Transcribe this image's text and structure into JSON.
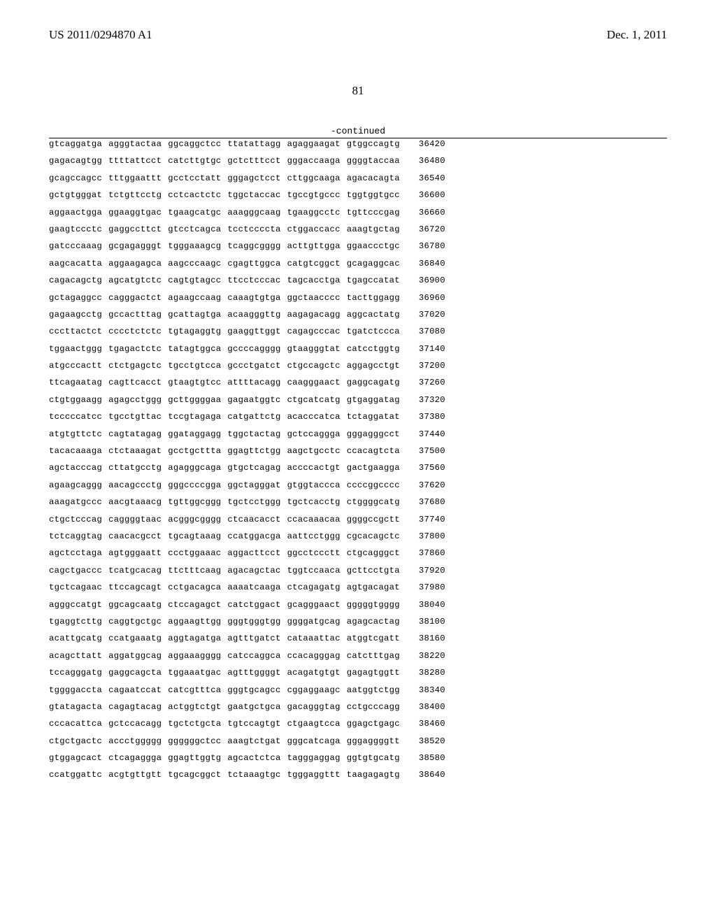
{
  "header": {
    "left": "US 2011/0294870 A1",
    "right": "Dec. 1, 2011"
  },
  "page_number": "81",
  "continued_label": "-continued",
  "sequence": {
    "rows": [
      {
        "groups": [
          "gtcaggatga",
          "agggtactaa",
          "ggcaggctcc",
          "ttatattagg",
          "agaggaagat",
          "gtggccagtg"
        ],
        "pos": "36420"
      },
      {
        "groups": [
          "gagacagtgg",
          "ttttattcct",
          "catcttgtgc",
          "gctctttcct",
          "gggaccaaga",
          "ggggtaccaa"
        ],
        "pos": "36480"
      },
      {
        "groups": [
          "gcagccagcc",
          "tttggaattt",
          "gcctcctatt",
          "gggagctcct",
          "cttggcaaga",
          "agacacagta"
        ],
        "pos": "36540"
      },
      {
        "groups": [
          "gctgtgggat",
          "tctgttcctg",
          "cctcactctc",
          "tggctaccac",
          "tgccgtgccc",
          "tggtggtgcc"
        ],
        "pos": "36600"
      },
      {
        "groups": [
          "aggaactgga",
          "ggaaggtgac",
          "tgaagcatgc",
          "aaagggcaag",
          "tgaaggcctc",
          "tgttcccgag"
        ],
        "pos": "36660"
      },
      {
        "groups": [
          "gaagtccctc",
          "gaggccttct",
          "gtcctcagca",
          "tcctccccta",
          "ctggaccacc",
          "aaagtgctag"
        ],
        "pos": "36720"
      },
      {
        "groups": [
          "gatcccaaag",
          "gcgagagggt",
          "tgggaaagcg",
          "tcaggcgggg",
          "acttgttgga",
          "ggaaccctgc"
        ],
        "pos": "36780"
      },
      {
        "groups": [
          "aagcacatta",
          "aggaagagca",
          "aagcccaagc",
          "cgagttggca",
          "catgtcggct",
          "gcagaggcac"
        ],
        "pos": "36840"
      },
      {
        "groups": [
          "cagacagctg",
          "agcatgtctc",
          "cagtgtagcc",
          "ttcctcccac",
          "tagcacctga",
          "tgagccatat"
        ],
        "pos": "36900"
      },
      {
        "groups": [
          "gctagaggcc",
          "cagggactct",
          "agaagccaag",
          "caaagtgtga",
          "ggctaacccc",
          "tacttggagg"
        ],
        "pos": "36960"
      },
      {
        "groups": [
          "gagaagcctg",
          "gccactttag",
          "gcattagtga",
          "acaagggttg",
          "aagagacagg",
          "aggcactatg"
        ],
        "pos": "37020"
      },
      {
        "groups": [
          "cccttactct",
          "cccctctctc",
          "tgtagaggtg",
          "gaaggttggt",
          "cagagcccac",
          "tgatctccca"
        ],
        "pos": "37080"
      },
      {
        "groups": [
          "tggaactggg",
          "tgagactctc",
          "tatagtggca",
          "gccccagggg",
          "gtaagggtat",
          "catcctggtg"
        ],
        "pos": "37140"
      },
      {
        "groups": [
          "atgcccactt",
          "ctctgagctc",
          "tgcctgtcca",
          "gccctgatct",
          "ctgccagctc",
          "aggagcctgt"
        ],
        "pos": "37200"
      },
      {
        "groups": [
          "ttcagaatag",
          "cagttcacct",
          "gtaagtgtcc",
          "attttacagg",
          "caagggaact",
          "gaggcagatg"
        ],
        "pos": "37260"
      },
      {
        "groups": [
          "ctgtggaagg",
          "agagcctggg",
          "gcttggggaa",
          "gagaatggtc",
          "ctgcatcatg",
          "gtgaggatag"
        ],
        "pos": "37320"
      },
      {
        "groups": [
          "tcccccatcc",
          "tgcctgttac",
          "tccgtagaga",
          "catgattctg",
          "acacccatca",
          "tctaggatat"
        ],
        "pos": "37380"
      },
      {
        "groups": [
          "atgtgttctc",
          "cagtatagag",
          "ggataggagg",
          "tggctactag",
          "gctccaggga",
          "gggagggcct"
        ],
        "pos": "37440"
      },
      {
        "groups": [
          "tacacaaaga",
          "ctctaaagat",
          "gcctgcttta",
          "ggagttctgg",
          "aagctgcctc",
          "ccacagtcta"
        ],
        "pos": "37500"
      },
      {
        "groups": [
          "agctacccag",
          "cttatgcctg",
          "agagggcaga",
          "gtgctcagag",
          "accccactgt",
          "gactgaagga"
        ],
        "pos": "37560"
      },
      {
        "groups": [
          "agaagcaggg",
          "aacagccctg",
          "gggccccgga",
          "ggctagggat",
          "gtggtaccca",
          "ccccggcccc"
        ],
        "pos": "37620"
      },
      {
        "groups": [
          "aaagatgccc",
          "aacgtaaacg",
          "tgttggcggg",
          "tgctcctggg",
          "tgctcacctg",
          "ctggggcatg"
        ],
        "pos": "37680"
      },
      {
        "groups": [
          "ctgctcccag",
          "caggggtaac",
          "acgggcgggg",
          "ctcaacacct",
          "ccacaaacaa",
          "ggggccgctt"
        ],
        "pos": "37740"
      },
      {
        "groups": [
          "tctcaggtag",
          "caacacgcct",
          "tgcagtaaag",
          "ccatggacga",
          "aattcctggg",
          "cgcacagctc"
        ],
        "pos": "37800"
      },
      {
        "groups": [
          "agctcctaga",
          "agtgggaatt",
          "ccctggaaac",
          "aggacttcct",
          "ggcctccctt",
          "ctgcagggct"
        ],
        "pos": "37860"
      },
      {
        "groups": [
          "cagctgaccc",
          "tcatgcacag",
          "ttctttcaag",
          "agacagctac",
          "tggtccaaca",
          "gcttcctgta"
        ],
        "pos": "37920"
      },
      {
        "groups": [
          "tgctcagaac",
          "ttccagcagt",
          "cctgacagca",
          "aaaatcaaga",
          "ctcagagatg",
          "agtgacagat"
        ],
        "pos": "37980"
      },
      {
        "groups": [
          "agggccatgt",
          "ggcagcaatg",
          "ctccagagct",
          "catctggact",
          "gcagggaact",
          "gggggtgggg"
        ],
        "pos": "38040"
      },
      {
        "groups": [
          "tgaggtcttg",
          "caggtgctgc",
          "aggaagttgg",
          "gggtgggtgg",
          "ggggatgcag",
          "agagcactag"
        ],
        "pos": "38100"
      },
      {
        "groups": [
          "acattgcatg",
          "ccatgaaatg",
          "aggtagatga",
          "agtttgatct",
          "cataaattac",
          "atggtcgatt"
        ],
        "pos": "38160"
      },
      {
        "groups": [
          "acagcttatt",
          "aggatggcag",
          "aggaaagggg",
          "catccaggca",
          "ccacagggag",
          "catctttgag"
        ],
        "pos": "38220"
      },
      {
        "groups": [
          "tccagggatg",
          "gaggcagcta",
          "tggaaatgac",
          "agtttggggt",
          "acagatgtgt",
          "gagagtggtt"
        ],
        "pos": "38280"
      },
      {
        "groups": [
          "tggggaccta",
          "cagaatccat",
          "catcgtttca",
          "gggtgcagcc",
          "cggaggaagc",
          "aatggtctgg"
        ],
        "pos": "38340"
      },
      {
        "groups": [
          "gtatagacta",
          "cagagtacag",
          "actggtctgt",
          "gaatgctgca",
          "gacagggtag",
          "cctgcccagg"
        ],
        "pos": "38400"
      },
      {
        "groups": [
          "cccacattca",
          "gctccacagg",
          "tgctctgcta",
          "tgtccagtgt",
          "ctgaagtcca",
          "ggagctgagc"
        ],
        "pos": "38460"
      },
      {
        "groups": [
          "ctgctgactc",
          "accctggggg",
          "ggggggctcc",
          "aaagtctgat",
          "gggcatcaga",
          "gggaggggtt"
        ],
        "pos": "38520"
      },
      {
        "groups": [
          "gtggagcact",
          "ctcagaggga",
          "ggagttggtg",
          "agcactctca",
          "tagggaggag",
          "ggtgtgcatg"
        ],
        "pos": "38580"
      },
      {
        "groups": [
          "ccatggattc",
          "acgtgttgtt",
          "tgcagcggct",
          "tctaaagtgc",
          "tgggaggttt",
          "taagagagtg"
        ],
        "pos": "38640"
      }
    ]
  },
  "style": {
    "body_font": "Times New Roman",
    "mono_font": "Courier New",
    "header_fontsize": 17,
    "page_number_fontsize": 17,
    "continued_fontsize": 13,
    "seq_fontsize": 12.2,
    "seq_row_gap": 12.2,
    "seq_group_gap": 9,
    "seq_pos_margin_left": 18,
    "background_color": "#ffffff",
    "text_color": "#000000",
    "rule_color": "#000000"
  }
}
